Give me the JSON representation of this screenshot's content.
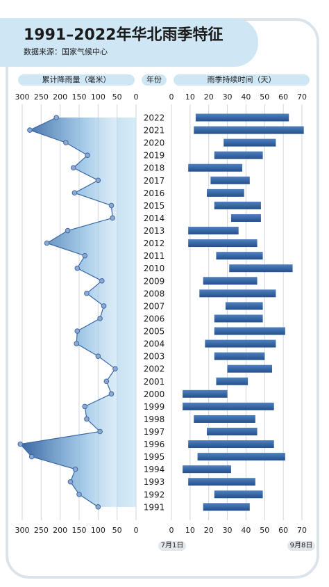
{
  "title": "1991–2022年华北雨季特征",
  "source": "数据来源：国家气候中心",
  "left_header": "累计降雨量（毫米）",
  "mid_header": "年份",
  "right_header": "雨季持续时间（天）",
  "start_label": "7月1日",
  "end_label": "9月8日",
  "colors": {
    "line": "#3a67a6",
    "bar": "#2f5e9e",
    "header": "#cfe7f5"
  },
  "chart_data": [
    {
      "type": "area",
      "title": "累计降雨量（毫米）",
      "x_axis_reversed": true,
      "xlim": [
        0,
        300
      ],
      "ticks": [
        300,
        250,
        200,
        150,
        100,
        50,
        0
      ],
      "categories": [
        "2022",
        "2021",
        "2020",
        "2019",
        "2018",
        "2017",
        "2016",
        "2015",
        "2014",
        "2013",
        "2012",
        "2011",
        "2010",
        "2009",
        "2008",
        "2007",
        "2006",
        "2005",
        "2004",
        "2003",
        "2002",
        "2001",
        "2000",
        "1999",
        "1998",
        "1997",
        "1996",
        "1995",
        "1994",
        "1993",
        "1992",
        "1991"
      ],
      "values": [
        210,
        280,
        185,
        128,
        165,
        100,
        162,
        65,
        62,
        180,
        235,
        135,
        155,
        90,
        130,
        85,
        95,
        155,
        157,
        100,
        55,
        78,
        65,
        135,
        130,
        95,
        305,
        275,
        160,
        173,
        150,
        100
      ]
    },
    {
      "type": "bar",
      "orientation": "horizontal",
      "title": "雨季持续时间（天）",
      "xlim": [
        0,
        70
      ],
      "ticks": [
        0,
        10,
        20,
        30,
        40,
        50,
        60,
        70
      ],
      "categories": [
        "2022",
        "2021",
        "2020",
        "2019",
        "2018",
        "2017",
        "2016",
        "2015",
        "2014",
        "2013",
        "2012",
        "2011",
        "2010",
        "2009",
        "2008",
        "2007",
        "2006",
        "2005",
        "2004",
        "2003",
        "2002",
        "2001",
        "2000",
        "1999",
        "1998",
        "1997",
        "1996",
        "1995",
        "1994",
        "1993",
        "1992",
        "1991"
      ],
      "start": [
        13,
        12,
        28,
        23,
        9,
        21,
        19,
        23,
        32,
        9,
        9,
        24,
        31,
        17,
        15,
        29,
        23,
        23,
        18,
        23,
        30,
        24,
        6,
        6,
        12,
        19,
        9,
        14,
        6,
        9,
        23,
        17
      ],
      "end": [
        63,
        71,
        56,
        49,
        38,
        42,
        39,
        48,
        48,
        36,
        46,
        49,
        65,
        46,
        56,
        49,
        49,
        61,
        56,
        50,
        54,
        41,
        30,
        55,
        45,
        46,
        55,
        61,
        32,
        45,
        49,
        42
      ]
    }
  ]
}
